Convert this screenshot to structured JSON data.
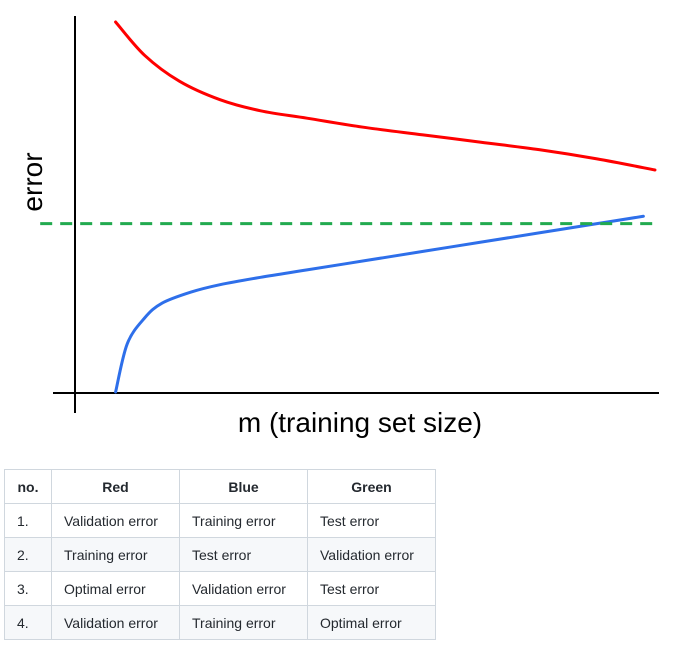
{
  "chart_data": {
    "type": "line",
    "title": "",
    "xlabel": "m (training set size)",
    "ylabel": "error",
    "xlim": [
      0,
      100
    ],
    "ylim": [
      0,
      100
    ],
    "grid": false,
    "ticks": false,
    "series": [
      {
        "color": "#ff0000",
        "style": "solid",
        "points": [
          [
            7,
            100
          ],
          [
            12,
            91
          ],
          [
            18,
            84
          ],
          [
            25,
            79
          ],
          [
            32,
            76
          ],
          [
            40,
            74
          ],
          [
            50,
            71.5
          ],
          [
            60,
            69.5
          ],
          [
            70,
            67.5
          ],
          [
            80,
            65.5
          ],
          [
            90,
            63
          ],
          [
            100,
            60
          ]
        ]
      },
      {
        "color": "#2e6fea",
        "style": "solid",
        "points": [
          [
            7,
            0
          ],
          [
            9,
            13
          ],
          [
            12,
            20
          ],
          [
            15,
            24
          ],
          [
            20,
            27
          ],
          [
            25,
            29
          ],
          [
            32,
            31
          ],
          [
            40,
            33
          ],
          [
            50,
            35.5
          ],
          [
            60,
            38
          ],
          [
            70,
            40.5
          ],
          [
            80,
            43
          ],
          [
            90,
            45.5
          ],
          [
            98,
            47.5
          ]
        ]
      },
      {
        "color": "#22aa4f",
        "style": "dashed",
        "points": [
          [
            -6,
            45.5
          ],
          [
            100,
            45.5
          ]
        ]
      }
    ]
  },
  "table": {
    "headers": [
      "no.",
      "Red",
      "Blue",
      "Green"
    ],
    "rows": [
      [
        "1.",
        "Validation error",
        "Training error",
        "Test error"
      ],
      [
        "2.",
        "Training error",
        "Test error",
        "Validation error"
      ],
      [
        "3.",
        "Optimal error",
        "Validation error",
        "Test error"
      ],
      [
        "4.",
        "Validation error",
        "Training error",
        "Optimal error"
      ]
    ]
  }
}
